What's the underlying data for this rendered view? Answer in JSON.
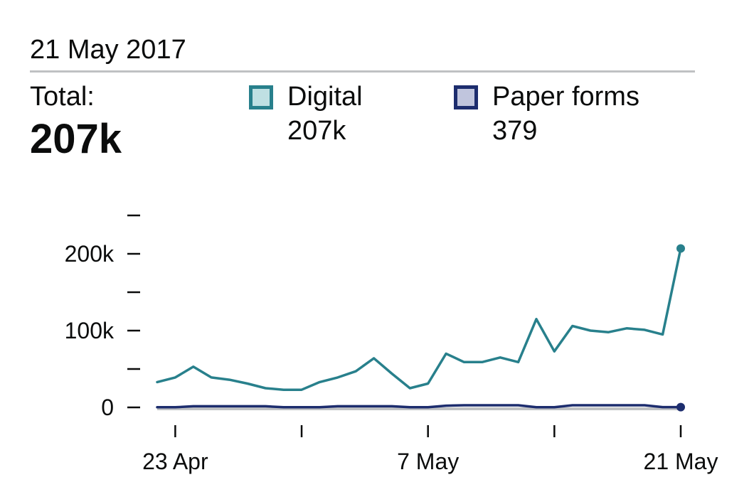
{
  "header": {
    "date": "21 May 2017",
    "total_label": "Total:",
    "total_value": "207k"
  },
  "legend": [
    {
      "name": "Digital",
      "value": "207k",
      "color": "#28808c",
      "fill": "#bfe0e3"
    },
    {
      "name": "Paper forms",
      "value": "379",
      "color": "#1d2d6e",
      "fill": "#c0c5dd"
    }
  ],
  "chart_data": {
    "type": "line",
    "x": [
      "2017-04-22",
      "2017-04-23",
      "2017-04-24",
      "2017-04-25",
      "2017-04-26",
      "2017-04-27",
      "2017-04-28",
      "2017-04-29",
      "2017-04-30",
      "2017-05-01",
      "2017-05-02",
      "2017-05-03",
      "2017-05-04",
      "2017-05-05",
      "2017-05-06",
      "2017-05-07",
      "2017-05-08",
      "2017-05-09",
      "2017-05-10",
      "2017-05-11",
      "2017-05-12",
      "2017-05-13",
      "2017-05-14",
      "2017-05-15",
      "2017-05-16",
      "2017-05-17",
      "2017-05-18",
      "2017-05-19",
      "2017-05-20",
      "2017-05-21"
    ],
    "series": [
      {
        "name": "Digital",
        "color": "#28808c",
        "values": [
          33000,
          39000,
          53000,
          39000,
          36000,
          31000,
          25000,
          23000,
          23000,
          33000,
          39000,
          47000,
          64000,
          44000,
          25000,
          31000,
          70000,
          59000,
          59000,
          65000,
          59000,
          115000,
          73000,
          106000,
          100000,
          98000,
          103000,
          101000,
          95000,
          207000
        ]
      },
      {
        "name": "Paper forms",
        "color": "#1d2d6e",
        "values": [
          200,
          200,
          1500,
          1500,
          1500,
          1500,
          1500,
          200,
          200,
          200,
          1500,
          1500,
          1500,
          1500,
          200,
          200,
          2200,
          2800,
          2800,
          2800,
          2800,
          200,
          200,
          2800,
          2800,
          2800,
          2800,
          2800,
          379,
          379
        ]
      }
    ],
    "x_ticks": [
      "2017-04-23",
      "2017-04-30",
      "2017-05-07",
      "2017-05-14",
      "2017-05-21"
    ],
    "x_tick_labels": {
      "2017-04-23": "23 Apr",
      "2017-05-07": "7 May",
      "2017-05-21": "21 May"
    },
    "y_ticks": [
      0,
      50000,
      100000,
      150000,
      200000,
      250000
    ],
    "y_tick_labels": {
      "0": "0",
      "100000": "100k",
      "200000": "200k"
    },
    "ylim": [
      0,
      250000
    ],
    "grid": false,
    "legend_position": "top"
  }
}
